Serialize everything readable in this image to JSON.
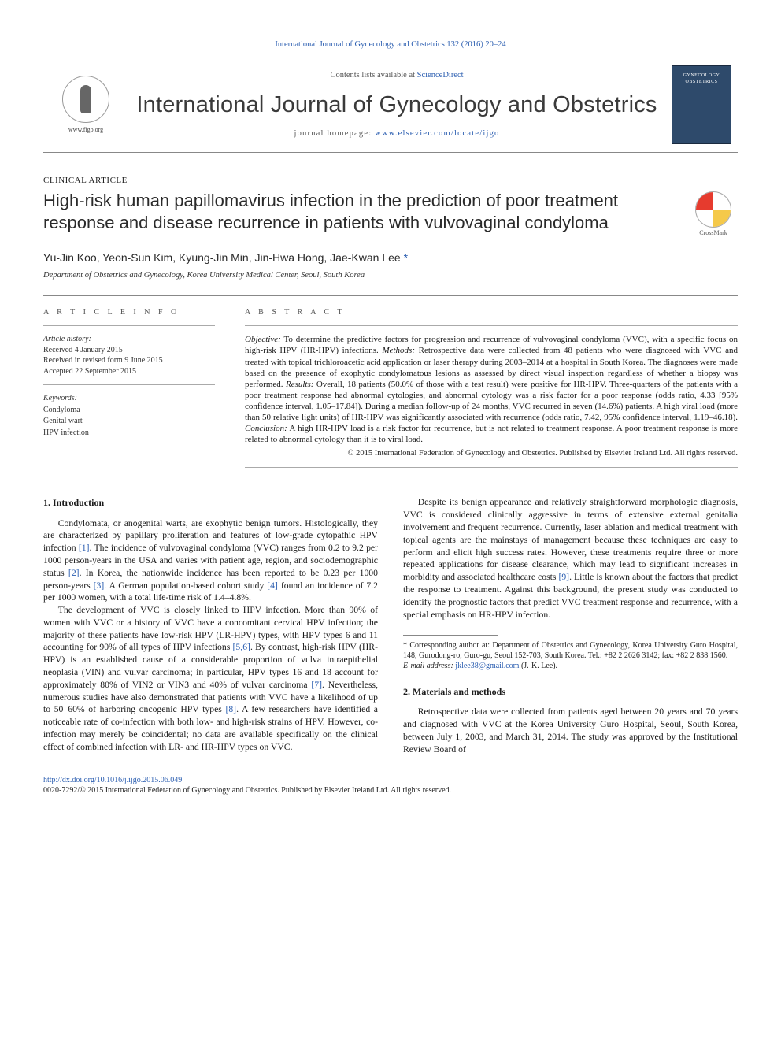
{
  "header": {
    "topline_journal": "International Journal of Gynecology and Obstetrics 132 (2016) 20–24",
    "contents_prefix": "Contents lists available at ",
    "contents_link": "ScienceDirect",
    "journal_name": "International Journal of Gynecology and Obstetrics",
    "homepage_label": "journal homepage: ",
    "homepage_url": "www.elsevier.com/locate/ijgo",
    "figo_url": "www.figo.org",
    "cover_label": "GYNECOLOGY OBSTETRICS"
  },
  "article": {
    "type": "CLINICAL ARTICLE",
    "title": "High-risk human papillomavirus infection in the prediction of poor treatment response and disease recurrence in patients with vulvovaginal condyloma",
    "crossmark": "CrossMark",
    "authors": "Yu-Jin Koo, Yeon-Sun Kim, Kyung-Jin Min, Jin-Hwa Hong, Jae-Kwan Lee ",
    "corr_mark": "*",
    "affiliation": "Department of Obstetrics and Gynecology, Korea University Medical Center, Seoul, South Korea"
  },
  "info": {
    "heading": "A R T I C L E   I N F O",
    "history_label": "Article history:",
    "received": "Received 4 January 2015",
    "revised": "Received in revised form 9 June 2015",
    "accepted": "Accepted 22 September 2015",
    "keywords_label": "Keywords:",
    "keywords": [
      "Condyloma",
      "Genital wart",
      "HPV infection"
    ]
  },
  "abstract": {
    "heading": "A B S T R A C T",
    "objective_label": "Objective:",
    "objective": " To determine the predictive factors for progression and recurrence of vulvovaginal condyloma (VVC), with a specific focus on high-risk HPV (HR-HPV) infections. ",
    "methods_label": "Methods:",
    "methods": " Retrospective data were collected from 48 patients who were diagnosed with VVC and treated with topical trichloroacetic acid application or laser therapy during 2003–2014 at a hospital in South Korea. The diagnoses were made based on the presence of exophytic condylomatous lesions as assessed by direct visual inspection regardless of whether a biopsy was performed. ",
    "results_label": "Results:",
    "results": " Overall, 18 patients (50.0% of those with a test result) were positive for HR-HPV. Three-quarters of the patients with a poor treatment response had abnormal cytologies, and abnormal cytology was a risk factor for a poor response (odds ratio, 4.33 [95% confidence interval, 1.05–17.84]). During a median follow-up of 24 months, VVC recurred in seven (14.6%) patients. A high viral load (more than 50 relative light units) of HR-HPV was significantly associated with recurrence (odds ratio, 7.42, 95% confidence interval, 1.19–46.18). ",
    "conclusion_label": "Conclusion:",
    "conclusion": " A high HR-HPV load is a risk factor for recurrence, but is not related to treatment response. A poor treatment response is more related to abnormal cytology than it is to viral load.",
    "copyright": "© 2015 International Federation of Gynecology and Obstetrics. Published by Elsevier Ireland Ltd. All rights reserved."
  },
  "sections": {
    "intro_heading": "1. Introduction",
    "intro_p1a": "Condylomata, or anogenital warts, are exophytic benign tumors. Histologically, they are characterized by papillary proliferation and features of low-grade cytopathic HPV infection ",
    "ref1": "[1]",
    "intro_p1b": ". The incidence of vulvovaginal condyloma (VVC) ranges from 0.2 to 9.2 per 1000 person-years in the USA and varies with patient age, region, and sociodemographic status ",
    "ref2": "[2]",
    "intro_p1c": ". In Korea, the nationwide incidence has been reported to be 0.23 per 1000 person-years ",
    "ref3": "[3]",
    "intro_p1d": ". A German population-based cohort study ",
    "ref4": "[4]",
    "intro_p1e": " found an incidence of 7.2 per 1000 women, with a total life-time risk of 1.4–4.8%.",
    "intro_p2a": "The development of VVC is closely linked to HPV infection. More than 90% of women with VVC or a history of VVC have a concomitant cervical HPV infection; the majority of these patients have low-risk HPV (LR-HPV) types, with HPV types 6 and 11 accounting for 90% of all types of HPV infections ",
    "ref56": "[5,6]",
    "intro_p2b": ". By contrast, high-risk HPV (HR-HPV) is an established cause of a considerable proportion of vulva intraepithelial neoplasia (VIN) and vulvar carcinoma; in particular, HPV types 16 and 18 account for approximately 80% of VIN2 or VIN3 and 40% of vulvar carcinoma ",
    "ref7": "[7]",
    "intro_p2c": ". Nevertheless, numerous studies have also demonstrated that patients with VVC have a likelihood of up to 50–60% of harboring oncogenic HPV types ",
    "ref8": "[8]",
    "intro_p2d": ". A few researchers have identified a noticeable rate of co-infection with both low- and high-risk strains of HPV. However, co-infection may merely be coincidental; no data are available specifically on the clinical effect of combined infection with LR- and HR-HPV types on VVC.",
    "intro_p3a": "Despite its benign appearance and relatively straightforward morphologic diagnosis, VVC is considered clinically aggressive in terms of extensive external genitalia involvement and frequent recurrence. Currently, laser ablation and medical treatment with topical agents are the mainstays of management because these techniques are easy to perform and elicit high success rates. However, these treatments require three or more repeated applications for disease clearance, which may lead to significant increases in morbidity and associated healthcare costs ",
    "ref9": "[9]",
    "intro_p3b": ". Little is known about the factors that predict the response to treatment. Against this background, the present study was conducted to identify the prognostic factors that predict VVC treatment response and recurrence, with a special emphasis on HR-HPV infection.",
    "methods_heading": "2. Materials and methods",
    "methods_p1": "Retrospective data were collected from patients aged between 20 years and 70 years and diagnosed with VVC at the Korea University Guro Hospital, Seoul, South Korea, between July 1, 2003, and March 31, 2014. The study was approved by the Institutional Review Board of"
  },
  "footnotes": {
    "corr": "* Corresponding author at: Department of Obstetrics and Gynecology, Korea University Guro Hospital, 148, Gurodong-ro, Guro-gu, Seoul 152-703, South Korea. Tel.: +82 2 2626 3142; fax: +82 2 838 1560.",
    "email_label": "E-mail address:",
    "email": "jklee38@gmail.com",
    "email_attr": " (J.-K. Lee)."
  },
  "footer": {
    "doi": "http://dx.doi.org/10.1016/j.ijgo.2015.06.049",
    "issn_line": "0020-7292/© 2015 International Federation of Gynecology and Obstetrics. Published by Elsevier Ireland Ltd. All rights reserved."
  },
  "colors": {
    "link": "#2a5db0",
    "text": "#1a1a1a",
    "rule": "#888888",
    "cover_bg": "#2e4a6b"
  },
  "fonts": {
    "journal_name_pt": 29,
    "title_pt": 22,
    "authors_pt": 14,
    "body_pt": 11.7,
    "abstract_pt": 11,
    "meta_pt": 10,
    "footnote_pt": 10
  }
}
